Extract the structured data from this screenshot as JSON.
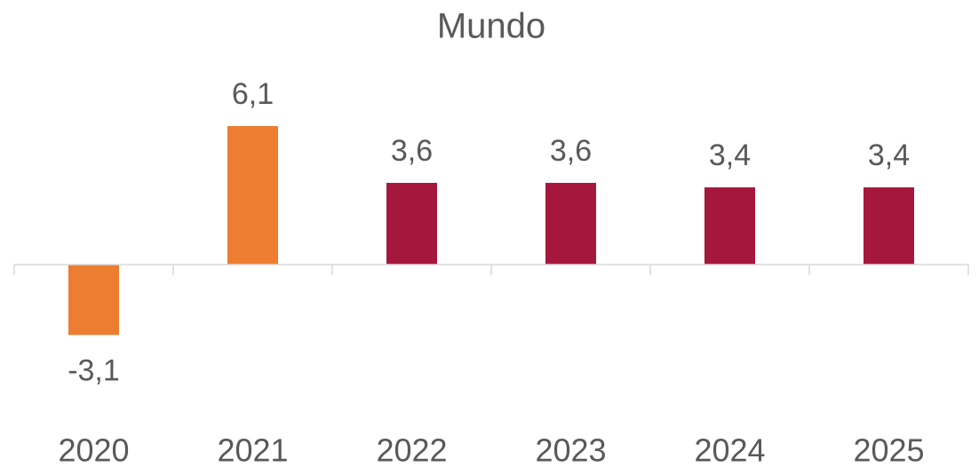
{
  "chart_data": {
    "type": "bar",
    "title": "Mundo",
    "categories": [
      "2020",
      "2021",
      "2022",
      "2023",
      "2024",
      "2025"
    ],
    "values": [
      -3.1,
      6.1,
      3.6,
      3.6,
      3.4,
      3.4
    ],
    "value_labels": [
      "-3,1",
      "6,1",
      "3,6",
      "3,6",
      "3,4",
      "3,4"
    ],
    "colors": [
      "#ED7D31",
      "#ED7D31",
      "#A6173D",
      "#A6173D",
      "#A6173D",
      "#A6173D"
    ]
  }
}
